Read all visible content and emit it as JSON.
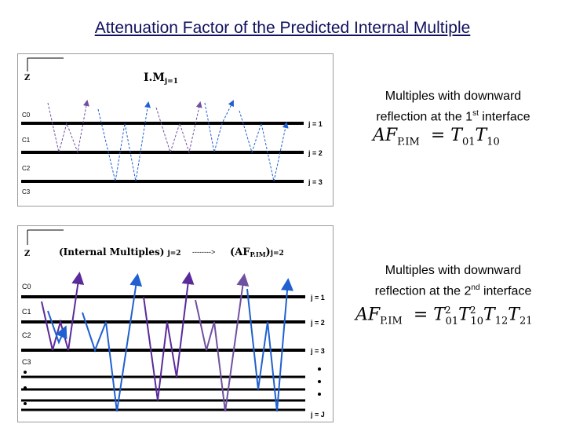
{
  "title": "Attenuation Factor of the Predicted Internal Multiple",
  "panel1": {
    "depth_label": "Z",
    "heading": "I.M",
    "heading_sub": "j=1",
    "c_labels": [
      "C0",
      "C1",
      "C2",
      "C3"
    ],
    "j_labels": [
      "j = 1",
      "j = 2",
      "j = 3"
    ]
  },
  "panel2": {
    "depth_label": "Z",
    "heading_left": "(Internal Multiples)",
    "heading_left_sub": "j=2",
    "heading_arrow": "-------->",
    "heading_right": "(AF",
    "heading_right_sub": "P.IM",
    "heading_right_end": ")",
    "heading_right_sub2": "j=2",
    "c_labels": [
      "C0",
      "C1",
      "C2",
      "C3"
    ],
    "j_labels": [
      "j = 1",
      "j = 2",
      "j = 3",
      "j = J"
    ]
  },
  "caption1": {
    "line1": "Multiples with downward",
    "line2_pre": "reflection at the 1",
    "line2_sup": "st",
    "line2_post": " interface"
  },
  "caption2": {
    "line1": "Multiples with downward",
    "line2_pre": "reflection at the 2",
    "line2_sup": "nd",
    "line2_post": " interface"
  },
  "equation1": {
    "lhs": "AF",
    "lhs_sub": "P.IM",
    "rhs": "= T01 T10"
  },
  "equation2": {
    "lhs": "AF",
    "lhs_sub": "P.IM",
    "rhs": "= T01² T10² T12 T21"
  },
  "colors": {
    "title": "#101060",
    "reflector": "#000000",
    "ray_blue": "#2060d0",
    "ray_purple": "#5a2a9a",
    "ray_violet": "#7050a0"
  }
}
